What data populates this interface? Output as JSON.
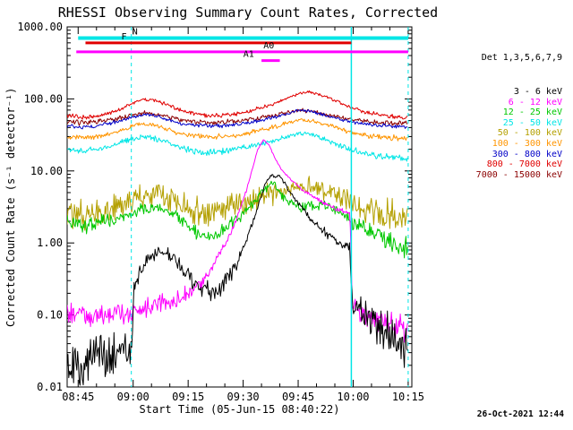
{
  "footer": {
    "timestamp": "26-Oct-2021 12:44"
  },
  "chart_data": {
    "type": "line",
    "title": "RHESSI Observing Summary Count Rates, Corrected",
    "xlabel": "Start Time (05-Jun-15 08:40:22)",
    "ylabel": "Corrected Count Rate (s⁻¹ detector⁻¹)",
    "legend_title": "Det 1,3,5,6,7,9",
    "legend_position": "right",
    "x_unit": "minutes since 08:40",
    "xlim": [
      2,
      96
    ],
    "ylim": [
      0.01,
      1000
    ],
    "y_scale": "log",
    "x_ticks": [
      {
        "t": 5,
        "label": "08:45"
      },
      {
        "t": 20,
        "label": "09:00"
      },
      {
        "t": 35,
        "label": "09:15"
      },
      {
        "t": 50,
        "label": "09:30"
      },
      {
        "t": 65,
        "label": "09:45"
      },
      {
        "t": 80,
        "label": "10:00"
      },
      {
        "t": 95,
        "label": "10:15"
      }
    ],
    "x_minor_step": 5,
    "y_ticks": [
      {
        "v": 0.01,
        "label": "0.01"
      },
      {
        "v": 0.1,
        "label": "0.10"
      },
      {
        "v": 1,
        "label": "1.00"
      },
      {
        "v": 10,
        "label": "10.00"
      },
      {
        "v": 100,
        "label": "100.00"
      },
      {
        "v": 1000,
        "label": "1000.00"
      }
    ],
    "v_lines": [
      {
        "t": 19.5,
        "style": "dashed",
        "color": "#00e6e6"
      },
      {
        "t": 79.5,
        "style": "solid",
        "color": "#00e6e6"
      },
      {
        "t": 95.0,
        "style": "dashed",
        "color": "#00e6e6"
      }
    ],
    "flag_bars": [
      {
        "label": "N",
        "color": "#00e6e6",
        "value": 700,
        "t_start": 5,
        "t_end": 95,
        "label_t": 20.5,
        "width": 4
      },
      {
        "label": "F",
        "color": "#e00000",
        "value": 600,
        "t_start": 7,
        "t_end": 79.5,
        "label_t": 17.5,
        "width": 3
      },
      {
        "label": "A0",
        "color": "#ff00ff",
        "value": 450,
        "t_start": 4.5,
        "t_end": 95,
        "label_t": 57,
        "width": 3
      },
      {
        "label": "A1",
        "color": "#ff00ff",
        "value": 340,
        "t_start": 55,
        "t_end": 60,
        "label_t": 51.5,
        "width": 3
      }
    ],
    "series": [
      {
        "name": "3 - 6 keV",
        "color": "#000000",
        "noise": 0.09,
        "points": [
          [
            2,
            0.022
          ],
          [
            6,
            0.02
          ],
          [
            10,
            0.026
          ],
          [
            14,
            0.03
          ],
          [
            19.6,
            0.038
          ],
          [
            20.2,
            0.26
          ],
          [
            23,
            0.5
          ],
          [
            26,
            0.7
          ],
          [
            28,
            0.78
          ],
          [
            31,
            0.62
          ],
          [
            34,
            0.4
          ],
          [
            37,
            0.27
          ],
          [
            40,
            0.21
          ],
          [
            43,
            0.22
          ],
          [
            46,
            0.32
          ],
          [
            49,
            0.6
          ],
          [
            52,
            1.6
          ],
          [
            54,
            3.2
          ],
          [
            56,
            6.5
          ],
          [
            57.5,
            9
          ],
          [
            58.5,
            8
          ],
          [
            60,
            8.5
          ],
          [
            62,
            6
          ],
          [
            64,
            4.2
          ],
          [
            66,
            3.1
          ],
          [
            68,
            2.3
          ],
          [
            70,
            1.8
          ],
          [
            73,
            1.35
          ],
          [
            76,
            1.05
          ],
          [
            79.1,
            0.85
          ],
          [
            79.8,
            0.125
          ],
          [
            82,
            0.1
          ],
          [
            85,
            0.075
          ],
          [
            88,
            0.058
          ],
          [
            91,
            0.046
          ],
          [
            95,
            0.034
          ]
        ]
      },
      {
        "name": "6 - 12 keV",
        "color": "#ff00ff",
        "noise": 0.06,
        "points": [
          [
            2,
            0.105
          ],
          [
            8,
            0.098
          ],
          [
            14,
            0.105
          ],
          [
            20,
            0.115
          ],
          [
            26,
            0.13
          ],
          [
            31,
            0.16
          ],
          [
            36,
            0.22
          ],
          [
            40,
            0.34
          ],
          [
            44,
            0.75
          ],
          [
            47,
            1.5
          ],
          [
            50,
            3.8
          ],
          [
            52,
            8.5
          ],
          [
            54,
            20
          ],
          [
            55.5,
            27
          ],
          [
            57,
            23
          ],
          [
            59,
            14
          ],
          [
            61,
            9.5
          ],
          [
            63,
            7.5
          ],
          [
            66,
            5.6
          ],
          [
            69,
            4.4
          ],
          [
            72,
            3.6
          ],
          [
            75,
            3.0
          ],
          [
            79.1,
            2.6
          ],
          [
            79.8,
            0.13
          ],
          [
            82,
            0.105
          ],
          [
            85,
            0.09
          ],
          [
            88,
            0.08
          ],
          [
            91,
            0.07
          ],
          [
            95,
            0.06
          ]
        ]
      },
      {
        "name": "12 - 25 keV",
        "color": "#00c800",
        "noise": 0.16,
        "points": [
          [
            2,
            1.9
          ],
          [
            6,
            1.7
          ],
          [
            10,
            1.9
          ],
          [
            14,
            2.1
          ],
          [
            18,
            2.4
          ],
          [
            22,
            2.9
          ],
          [
            25,
            3.1
          ],
          [
            28,
            3.0
          ],
          [
            31,
            2.6
          ],
          [
            34,
            1.9
          ],
          [
            37,
            1.4
          ],
          [
            40,
            1.2
          ],
          [
            43,
            1.3
          ],
          [
            46,
            1.7
          ],
          [
            49,
            2.3
          ],
          [
            52,
            3.2
          ],
          [
            55,
            4.8
          ],
          [
            57,
            6.2
          ],
          [
            58.5,
            6.5
          ],
          [
            60,
            5
          ],
          [
            62,
            3.8
          ],
          [
            65,
            3.1
          ],
          [
            68,
            3.3
          ],
          [
            71,
            3.4
          ],
          [
            74,
            3.0
          ],
          [
            77,
            2.4
          ],
          [
            80,
            1.9
          ],
          [
            83,
            1.6
          ],
          [
            86,
            1.3
          ],
          [
            89,
            1.1
          ],
          [
            92,
            0.95
          ],
          [
            95,
            0.85
          ]
        ]
      },
      {
        "name": "25 - 50 keV",
        "color": "#00e6e6",
        "noise": 0.22,
        "points": [
          [
            2,
            20
          ],
          [
            6,
            19
          ],
          [
            10,
            20
          ],
          [
            14,
            22
          ],
          [
            17,
            25
          ],
          [
            20,
            28
          ],
          [
            23,
            30
          ],
          [
            26,
            28
          ],
          [
            29,
            25
          ],
          [
            32,
            22
          ],
          [
            36,
            19
          ],
          [
            40,
            18
          ],
          [
            44,
            18.5
          ],
          [
            48,
            20
          ],
          [
            52,
            22
          ],
          [
            56,
            25
          ],
          [
            60,
            28
          ],
          [
            63,
            31
          ],
          [
            66,
            33
          ],
          [
            69,
            31
          ],
          [
            72,
            28
          ],
          [
            75,
            24
          ],
          [
            78,
            21
          ],
          [
            81,
            19
          ],
          [
            84,
            17
          ],
          [
            87,
            16
          ],
          [
            90,
            15.5
          ],
          [
            95,
            15
          ]
        ]
      },
      {
        "name": "50 - 100 keV",
        "color": "#b4a000",
        "noise": 0.42,
        "points": [
          [
            2,
            2.6
          ],
          [
            6,
            2.4
          ],
          [
            10,
            2.6
          ],
          [
            14,
            3.0
          ],
          [
            18,
            3.6
          ],
          [
            22,
            4.4
          ],
          [
            26,
            4.6
          ],
          [
            30,
            4.0
          ],
          [
            34,
            3.2
          ],
          [
            38,
            2.8
          ],
          [
            42,
            2.7
          ],
          [
            46,
            3.0
          ],
          [
            50,
            3.5
          ],
          [
            54,
            4.2
          ],
          [
            58,
            4.8
          ],
          [
            62,
            5.4
          ],
          [
            66,
            5.8
          ],
          [
            69,
            5.8
          ],
          [
            72,
            5.4
          ],
          [
            75,
            4.8
          ],
          [
            78,
            4.0
          ],
          [
            81,
            3.2
          ],
          [
            84,
            2.8
          ],
          [
            87,
            2.5
          ],
          [
            90,
            2.3
          ],
          [
            95,
            2.2
          ]
        ]
      },
      {
        "name": "100 - 300 keV",
        "color": "#ff9500",
        "noise": 0.24,
        "points": [
          [
            2,
            30
          ],
          [
            6,
            29
          ],
          [
            10,
            30
          ],
          [
            14,
            33
          ],
          [
            17,
            37
          ],
          [
            20,
            42
          ],
          [
            23,
            45
          ],
          [
            26,
            43
          ],
          [
            29,
            39
          ],
          [
            32,
            34
          ],
          [
            36,
            31
          ],
          [
            40,
            30
          ],
          [
            44,
            30
          ],
          [
            48,
            31
          ],
          [
            52,
            34
          ],
          [
            56,
            38
          ],
          [
            60,
            43
          ],
          [
            63,
            48
          ],
          [
            66,
            52
          ],
          [
            69,
            49
          ],
          [
            72,
            45
          ],
          [
            75,
            41
          ],
          [
            78,
            36
          ],
          [
            81,
            33
          ],
          [
            84,
            31
          ],
          [
            87,
            30
          ],
          [
            90,
            29
          ],
          [
            95,
            28
          ]
        ]
      },
      {
        "name": "300 - 800 keV",
        "color": "#0000c8",
        "noise": 0.22,
        "points": [
          [
            2,
            42
          ],
          [
            6,
            41
          ],
          [
            10,
            42
          ],
          [
            14,
            46
          ],
          [
            17,
            51
          ],
          [
            20,
            57
          ],
          [
            23,
            61
          ],
          [
            26,
            59
          ],
          [
            29,
            53
          ],
          [
            32,
            47
          ],
          [
            36,
            44
          ],
          [
            40,
            42
          ],
          [
            44,
            42
          ],
          [
            48,
            44
          ],
          [
            52,
            47
          ],
          [
            56,
            52
          ],
          [
            60,
            58
          ],
          [
            63,
            64
          ],
          [
            66,
            70
          ],
          [
            69,
            66
          ],
          [
            72,
            61
          ],
          [
            75,
            55
          ],
          [
            78,
            50
          ],
          [
            81,
            46
          ],
          [
            84,
            44
          ],
          [
            87,
            43
          ],
          [
            90,
            42
          ],
          [
            95,
            41
          ]
        ]
      },
      {
        "name": "800 - 7000 keV",
        "color": "#e00000",
        "noise": 0.28,
        "points": [
          [
            2,
            58
          ],
          [
            6,
            56
          ],
          [
            10,
            58
          ],
          [
            14,
            64
          ],
          [
            17,
            74
          ],
          [
            20,
            88
          ],
          [
            23,
            100
          ],
          [
            26,
            96
          ],
          [
            29,
            84
          ],
          [
            32,
            72
          ],
          [
            36,
            63
          ],
          [
            40,
            59
          ],
          [
            44,
            59
          ],
          [
            48,
            62
          ],
          [
            52,
            68
          ],
          [
            56,
            78
          ],
          [
            60,
            92
          ],
          [
            63,
            108
          ],
          [
            66,
            120
          ],
          [
            68,
            125
          ],
          [
            71,
            115
          ],
          [
            74,
            100
          ],
          [
            77,
            86
          ],
          [
            80,
            74
          ],
          [
            83,
            66
          ],
          [
            86,
            61
          ],
          [
            89,
            58
          ],
          [
            92,
            56
          ],
          [
            95,
            55
          ]
        ]
      },
      {
        "name": "7000 - 15000 keV",
        "color": "#8b0000",
        "noise": 0.3,
        "points": [
          [
            2,
            48
          ],
          [
            6,
            47
          ],
          [
            10,
            48
          ],
          [
            14,
            51
          ],
          [
            17,
            55
          ],
          [
            20,
            60
          ],
          [
            23,
            64
          ],
          [
            26,
            62
          ],
          [
            29,
            57
          ],
          [
            32,
            52
          ],
          [
            36,
            49
          ],
          [
            40,
            47
          ],
          [
            44,
            47
          ],
          [
            48,
            49
          ],
          [
            52,
            52
          ],
          [
            56,
            56
          ],
          [
            60,
            61
          ],
          [
            63,
            66
          ],
          [
            66,
            70
          ],
          [
            69,
            67
          ],
          [
            72,
            62
          ],
          [
            75,
            57
          ],
          [
            78,
            53
          ],
          [
            81,
            50
          ],
          [
            84,
            48
          ],
          [
            87,
            47
          ],
          [
            90,
            46
          ],
          [
            95,
            46
          ]
        ]
      }
    ]
  }
}
